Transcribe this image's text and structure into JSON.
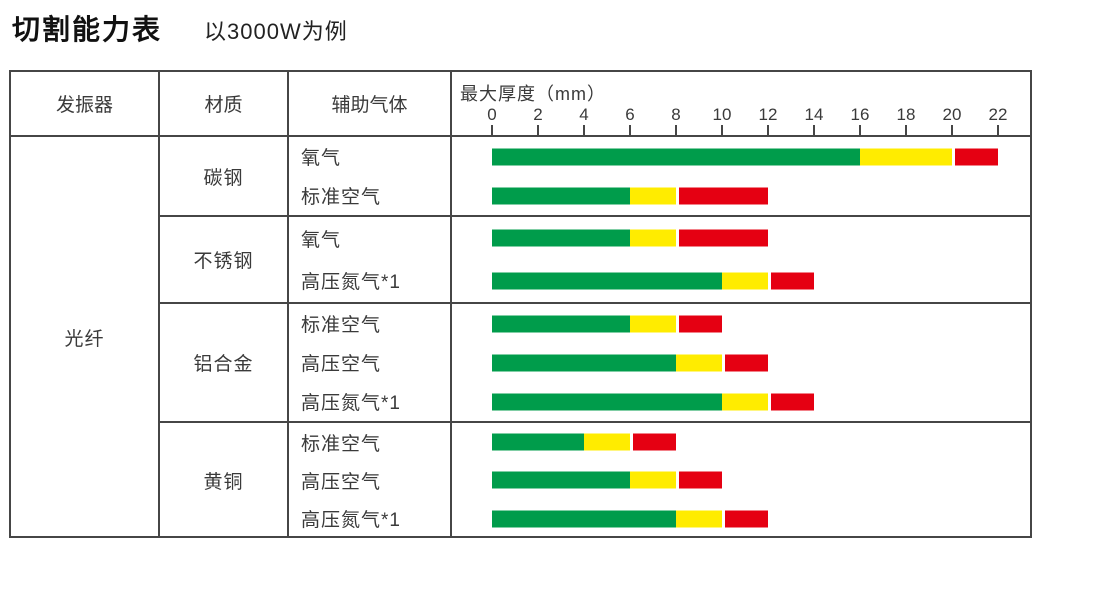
{
  "title": "切割能力表",
  "subtitle": "以3000W为例",
  "colors": {
    "good_green": "#009C4B",
    "caution_yellow": "#FFEC00",
    "limit_red": "#E50012",
    "border_gray": "#464646"
  },
  "table": {
    "headers": {
      "oscillator": "发振器",
      "material": "材质",
      "gas": "辅助气体",
      "thickness": "最大厚度（mm）"
    },
    "oscillator": "光纤",
    "axis": {
      "unit": "mm",
      "max": 22,
      "ticks": [
        0,
        2,
        4,
        6,
        8,
        10,
        12,
        14,
        16,
        18,
        20,
        22
      ]
    },
    "groups": [
      {
        "material": "碳钢",
        "rows": [
          {
            "gas": "氧气",
            "green": [
              0,
              16
            ],
            "yellow": [
              16,
              20
            ],
            "red": [
              20,
              22
            ]
          },
          {
            "gas": "标准空气",
            "green": [
              0,
              6
            ],
            "yellow": [
              6,
              8
            ],
            "red": [
              8,
              12
            ]
          }
        ]
      },
      {
        "material": "不锈钢",
        "rows": [
          {
            "gas": "氧气",
            "green": [
              0,
              6
            ],
            "yellow": [
              6,
              8
            ],
            "red": [
              8,
              12
            ]
          },
          {
            "gas": "高压氮气*1",
            "green": [
              0,
              10
            ],
            "yellow": [
              10,
              12
            ],
            "red": [
              12,
              14
            ]
          }
        ]
      },
      {
        "material": "铝合金",
        "rows": [
          {
            "gas": "标准空气",
            "green": [
              0,
              6
            ],
            "yellow": [
              6,
              8
            ],
            "red": [
              8,
              10
            ]
          },
          {
            "gas": "高压空气",
            "green": [
              0,
              8
            ],
            "yellow": [
              8,
              10
            ],
            "red": [
              10,
              12
            ]
          },
          {
            "gas": "高压氮气*1",
            "green": [
              0,
              10
            ],
            "yellow": [
              10,
              12
            ],
            "red": [
              12,
              14
            ]
          }
        ]
      },
      {
        "material": "黄铜",
        "rows": [
          {
            "gas": "标准空气",
            "green": [
              0,
              4
            ],
            "yellow": [
              4,
              6
            ],
            "red": [
              6,
              8
            ]
          },
          {
            "gas": "高压空气",
            "green": [
              0,
              6
            ],
            "yellow": [
              6,
              8
            ],
            "red": [
              8,
              10
            ]
          },
          {
            "gas": "高压氮气*1",
            "green": [
              0,
              8
            ],
            "yellow": [
              8,
              10
            ],
            "red": [
              10,
              12
            ]
          }
        ]
      }
    ]
  },
  "chart_data": {
    "type": "bar",
    "orientation": "horizontal",
    "stacked": true,
    "title": "切割能力表",
    "subtitle": "以3000W为例",
    "xlabel": "最大厚度（mm）",
    "xlim": [
      0,
      22
    ],
    "xticks": [
      0,
      2,
      4,
      6,
      8,
      10,
      12,
      14,
      16,
      18,
      20,
      22
    ],
    "grid": false,
    "legend": "none",
    "categories": [
      "碳钢 氧气",
      "碳钢 标准空气",
      "不锈钢 氧气",
      "不锈钢 高压氮气*1",
      "铝合金 标准空气",
      "铝合金 高压空气",
      "铝合金 高压氮气*1",
      "黄铜 标准空气",
      "黄铜 高压空气",
      "黄铜 高压氮气*1"
    ],
    "series": [
      {
        "name": "green",
        "color": "#009C4B",
        "values": [
          16,
          6,
          6,
          10,
          6,
          8,
          10,
          4,
          6,
          8
        ]
      },
      {
        "name": "yellow",
        "color": "#FFEC00",
        "values": [
          4,
          2,
          2,
          2,
          2,
          2,
          2,
          2,
          2,
          2
        ]
      },
      {
        "name": "red",
        "color": "#E50012",
        "values": [
          2,
          4,
          4,
          2,
          2,
          2,
          2,
          2,
          2,
          2
        ]
      }
    ]
  }
}
